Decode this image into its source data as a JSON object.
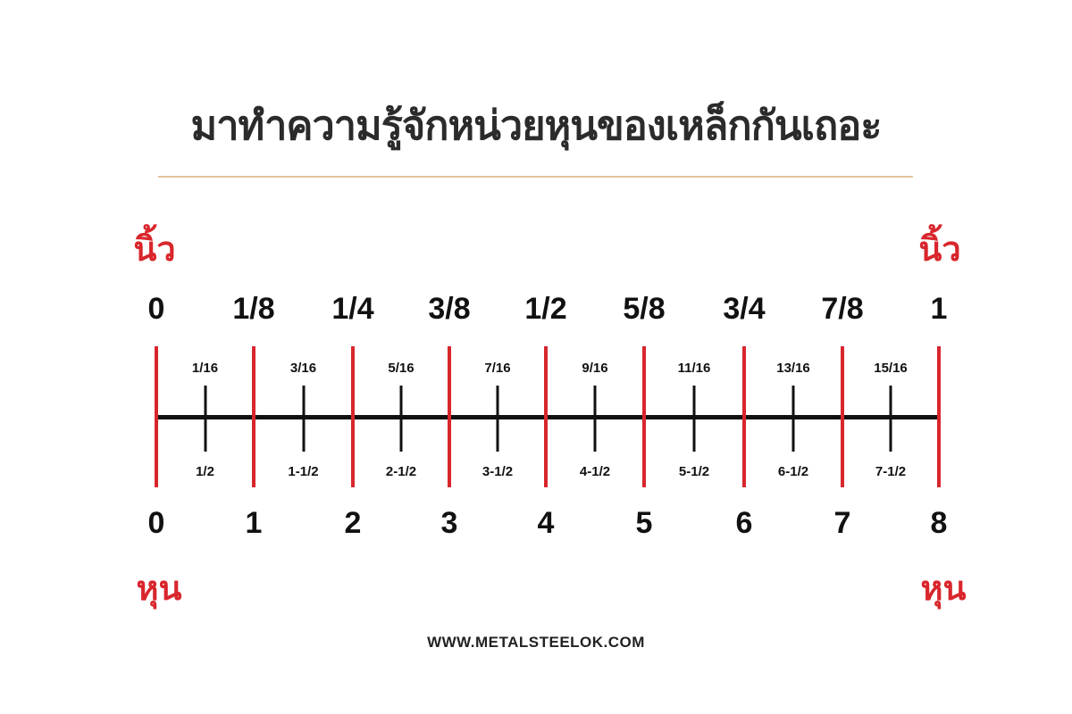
{
  "title": "มาทำความรู้จักหน่วยหุนของเหล็กกันเถอะ",
  "inch_unit_label": "นิ้ว",
  "hun_unit_label": "หุน",
  "inch_labels": [
    "0",
    "1/8",
    "1/4",
    "3/8",
    "1/2",
    "5/8",
    "3/4",
    "7/8",
    "1"
  ],
  "hun_labels": [
    "0",
    "1",
    "2",
    "3",
    "4",
    "5",
    "6",
    "7",
    "8"
  ],
  "sixteenth_labels": [
    "1/16",
    "3/16",
    "5/16",
    "7/16",
    "9/16",
    "11/16",
    "13/16",
    "15/16"
  ],
  "half_hun_labels": [
    "1/2",
    "1-1/2",
    "2-1/2",
    "3-1/2",
    "4-1/2",
    "5-1/2",
    "6-1/2",
    "7-1/2"
  ],
  "footer": "WWW.METALSTEELOK.COM",
  "colors": {
    "accent_red": "#d8262c",
    "rule": "#e3c49e",
    "text": "#2b2b2b"
  }
}
